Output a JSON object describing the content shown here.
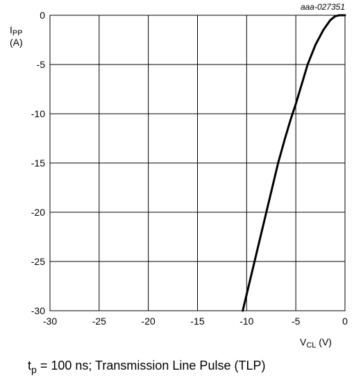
{
  "figure_code": "aaa-027351",
  "caption": {
    "main": "t",
    "sub": "p",
    "rest": " = 100 ns; Transmission Line Pulse (TLP)"
  },
  "chart_data": {
    "type": "line",
    "title": "",
    "xlabel": {
      "main": "V",
      "sub": "CL",
      "unit": " (V)"
    },
    "ylabel": {
      "main": "I",
      "sub": "PP",
      "unit": "(A)"
    },
    "xlim": [
      -30,
      0
    ],
    "ylim": [
      -30,
      0
    ],
    "xticks": [
      -30,
      -25,
      -20,
      -15,
      -10,
      -5,
      0
    ],
    "yticks": [
      0,
      -5,
      -10,
      -15,
      -20,
      -25,
      -30
    ],
    "x_tick_labels": [
      "-30",
      "-25",
      "-20",
      "-15",
      "-10",
      "-5",
      "0"
    ],
    "y_tick_labels": [
      "0",
      "-5",
      "-10",
      "-15",
      "-20",
      "-25",
      "-30"
    ],
    "grid": true,
    "series": [
      {
        "color": "#000000",
        "points": [
          [
            -10.4,
            -30
          ],
          [
            -9.8,
            -27.5
          ],
          [
            -9.2,
            -25
          ],
          [
            -8.6,
            -22.5
          ],
          [
            -8.0,
            -20
          ],
          [
            -7.4,
            -17.5
          ],
          [
            -6.8,
            -15
          ],
          [
            -6.1,
            -12.5
          ],
          [
            -5.5,
            -10.5
          ],
          [
            -5.0,
            -9
          ],
          [
            -4.4,
            -7
          ],
          [
            -3.8,
            -5
          ],
          [
            -3.0,
            -3
          ],
          [
            -2.2,
            -1.5
          ],
          [
            -1.5,
            -0.5
          ],
          [
            -1.0,
            -0.1
          ],
          [
            -0.6,
            0
          ],
          [
            0,
            0
          ]
        ]
      }
    ]
  }
}
